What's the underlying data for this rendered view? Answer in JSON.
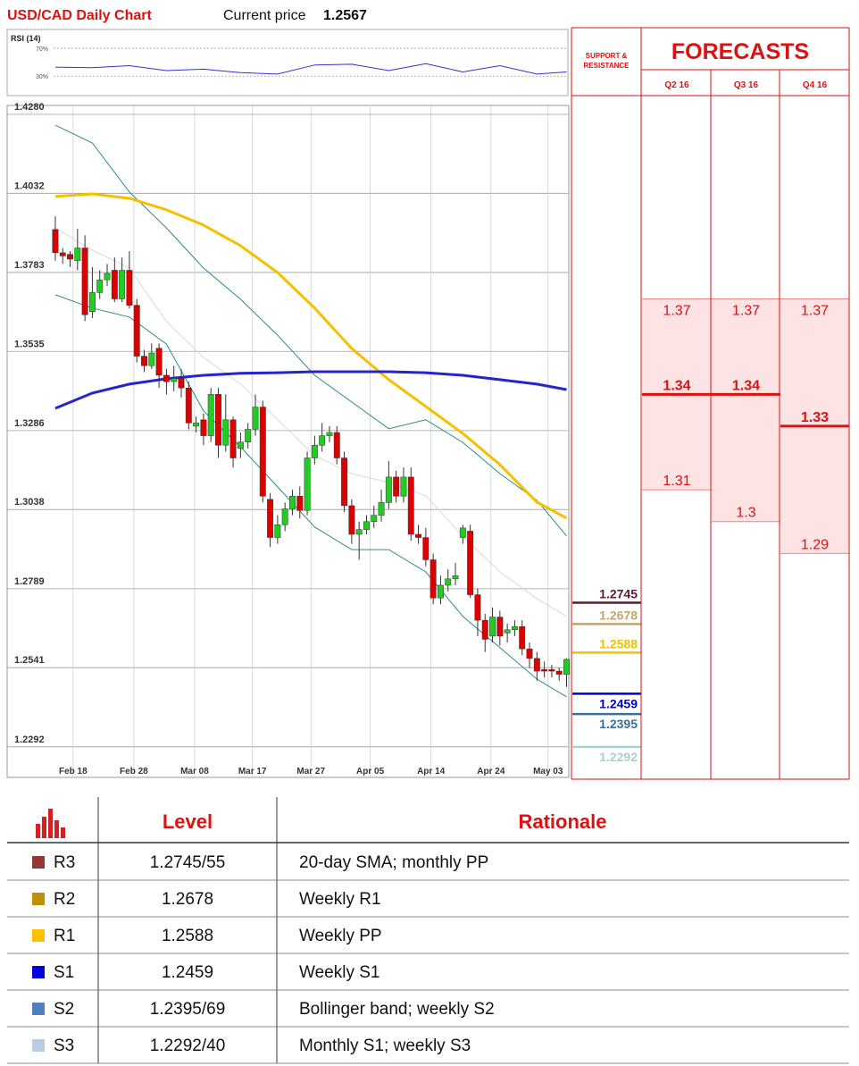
{
  "title": "USD/CAD Daily Chart",
  "current_price_label": "Current price",
  "current_price": 1.2567,
  "chart_data": [
    {
      "type": "candlestick",
      "xlim": [
        -6.5,
        69.3
      ],
      "xticks": [
        {
          "value": 2.4,
          "label": "Feb 18"
        },
        {
          "value": 10.6,
          "label": "Feb 28"
        },
        {
          "value": 18.8,
          "label": "Mar 08"
        },
        {
          "value": 26.6,
          "label": "Mar 17"
        },
        {
          "value": 34.5,
          "label": "Mar 27"
        },
        {
          "value": 42.5,
          "label": "Apr 05"
        },
        {
          "value": 50.7,
          "label": "Apr 14"
        },
        {
          "value": 58.8,
          "label": "Apr 24"
        },
        {
          "value": 66.5,
          "label": "May 03"
        }
      ],
      "ylim": [
        1.2196,
        1.428
      ],
      "yticks": [
        {
          "value": 1.428,
          "label": "1.4280"
        },
        1.4032,
        1.3783,
        1.3535,
        1.3286,
        {
          "value": 1.3038,
          "label": "1.3038"
        },
        1.2789,
        1.2541,
        1.2292
      ],
      "grid": true,
      "up_color": "#22cc22",
      "down_color": "#dd0000",
      "open": [
        1.3918,
        1.3845,
        1.384,
        1.382,
        1.386,
        1.366,
        1.372,
        1.376,
        1.379,
        1.37,
        1.379,
        1.368,
        1.352,
        1.349,
        1.3545,
        1.346,
        1.344,
        1.345,
        1.342,
        1.33,
        1.332,
        1.327,
        1.34,
        1.324,
        1.332,
        1.323,
        1.325,
        1.329,
        1.336,
        1.307,
        1.295,
        1.299,
        1.304,
        1.308,
        1.3035,
        1.32,
        1.324,
        1.327,
        1.328,
        1.32,
        1.305,
        1.296,
        1.2975,
        1.3,
        1.302,
        1.306,
        1.314,
        1.308,
        1.314,
        1.296,
        1.295,
        1.288,
        1.276,
        1.28,
        1.282,
        1.295,
        1.297,
        1.277,
        1.269,
        1.264,
        1.27,
        1.265,
        1.266,
        1.267,
        1.26,
        1.257,
        1.2535,
        1.2535,
        1.253,
        1.252
      ],
      "high": [
        1.396,
        1.386,
        1.385,
        1.392,
        1.39,
        1.38,
        1.379,
        1.381,
        1.383,
        1.383,
        1.385,
        1.37,
        1.354,
        1.356,
        1.356,
        1.348,
        1.349,
        1.348,
        1.344,
        1.333,
        1.334,
        1.342,
        1.342,
        1.34,
        1.333,
        1.328,
        1.331,
        1.34,
        1.338,
        1.309,
        1.302,
        1.306,
        1.31,
        1.311,
        1.322,
        1.327,
        1.331,
        1.33,
        1.33,
        1.322,
        1.307,
        1.3,
        1.302,
        1.305,
        1.31,
        1.319,
        1.316,
        1.317,
        1.317,
        1.299,
        1.298,
        1.29,
        1.283,
        1.285,
        1.287,
        1.299,
        1.299,
        1.279,
        1.271,
        1.273,
        1.272,
        1.268,
        1.269,
        1.269,
        1.262,
        1.259,
        1.256,
        1.255,
        1.254,
        1.257
      ],
      "low": [
        1.382,
        1.381,
        1.38,
        1.379,
        1.363,
        1.364,
        1.37,
        1.374,
        1.369,
        1.369,
        1.367,
        1.35,
        1.347,
        1.348,
        1.342,
        1.34,
        1.341,
        1.339,
        1.329,
        1.328,
        1.324,
        1.325,
        1.32,
        1.322,
        1.317,
        1.32,
        1.323,
        1.327,
        1.306,
        1.292,
        1.293,
        1.297,
        1.302,
        1.301,
        1.302,
        1.318,
        1.322,
        1.325,
        1.318,
        1.303,
        1.293,
        1.288,
        1.296,
        1.298,
        1.3,
        1.304,
        1.306,
        1.306,
        1.294,
        1.293,
        1.286,
        1.274,
        1.274,
        1.278,
        1.28,
        1.293,
        1.276,
        1.264,
        1.259,
        1.262,
        1.261,
        1.262,
        1.264,
        1.258,
        1.254,
        1.25,
        1.251,
        1.251,
        1.25,
        1.248
      ],
      "close": [
        1.3845,
        1.3835,
        1.3825,
        1.386,
        1.365,
        1.372,
        1.376,
        1.378,
        1.37,
        1.379,
        1.368,
        1.352,
        1.349,
        1.353,
        1.346,
        1.344,
        1.345,
        1.342,
        1.331,
        1.331,
        1.327,
        1.34,
        1.324,
        1.332,
        1.32,
        1.325,
        1.329,
        1.336,
        1.308,
        1.295,
        1.299,
        1.304,
        1.308,
        1.3035,
        1.32,
        1.324,
        1.327,
        1.328,
        1.32,
        1.305,
        1.296,
        1.2975,
        1.3,
        1.302,
        1.306,
        1.314,
        1.308,
        1.314,
        1.296,
        1.295,
        1.288,
        1.276,
        1.28,
        1.282,
        1.283,
        1.298,
        1.277,
        1.269,
        1.263,
        1.27,
        1.264,
        1.266,
        1.267,
        1.26,
        1.257,
        1.253,
        1.253,
        1.253,
        1.252,
        1.2567
      ],
      "overlay_x": [
        0,
        5,
        10,
        15,
        20,
        25,
        30,
        35,
        40,
        45,
        50,
        55,
        60,
        65,
        69
      ],
      "overlays": [
        {
          "color": "#d9d9d9",
          "width": 1,
          "values": [
            1.3923,
            1.3853,
            1.3797,
            1.3629,
            1.3516,
            1.3432,
            1.332,
            1.3207,
            1.3151,
            1.3123,
            1.3081,
            1.2955,
            1.2842,
            1.2758,
            1.2702
          ]
        },
        {
          "color": "#2e8b8b",
          "width": 1,
          "values": [
            1.4246,
            1.419,
            1.4036,
            1.3923,
            1.3797,
            1.3699,
            1.3586,
            1.346,
            1.3376,
            1.3292,
            1.332,
            1.3249,
            1.3151,
            1.3067,
            1.2955
          ]
        },
        {
          "color": "#2e8b8b",
          "width": 1,
          "values": [
            1.3713,
            1.3671,
            1.3643,
            1.3558,
            1.3348,
            1.3235,
            1.3109,
            1.2983,
            1.2912,
            1.2912,
            1.2842,
            1.2702,
            1.2604,
            1.2505,
            1.2449
          ]
        },
        {
          "color": "#f5c000",
          "width": 3,
          "values": [
            1.4022,
            1.403,
            1.4016,
            1.398,
            1.3932,
            1.3867,
            1.3783,
            1.3671,
            1.3544,
            1.3446,
            1.3362,
            1.3277,
            1.3179,
            1.3061,
            1.3011
          ]
        },
        {
          "color": "#2424d0",
          "width": 3,
          "values": [
            1.3356,
            1.3404,
            1.3432,
            1.3449,
            1.346,
            1.3466,
            1.3468,
            1.3471,
            1.3471,
            1.3471,
            1.3468,
            1.346,
            1.3446,
            1.3432,
            1.3415
          ]
        }
      ],
      "levels": [
        {
          "value": 1.2745,
          "color": "#5c1a33"
        },
        {
          "value": 1.2678,
          "color": "#c8a36a"
        },
        {
          "value": 1.2588,
          "color": "#f0c000"
        },
        {
          "value": 1.2459,
          "color": "#0000cc"
        },
        {
          "value": 1.2395,
          "color": "#3a6f9a"
        },
        {
          "value": 1.2292,
          "color": "#a8d0d0"
        }
      ]
    },
    {
      "type": "line",
      "title": "RSI (14)",
      "color": "#3333cc",
      "x": [
        0,
        5,
        10,
        15,
        20,
        25,
        30,
        35,
        40,
        45,
        50,
        55,
        60,
        65,
        69
      ],
      "values": [
        43,
        42,
        45,
        38,
        40,
        35,
        33,
        46,
        47,
        38,
        48,
        36,
        45,
        33,
        36
      ],
      "ylim": [
        2,
        97
      ],
      "yticks": [
        {
          "value": 70,
          "label": "70%"
        },
        {
          "value": 30,
          "label": "30%"
        }
      ]
    }
  ],
  "forecasts": {
    "support_resistance": [
      "SUPPORT &",
      "RESISTANCE"
    ],
    "title": "FORECASTS",
    "quarters": [
      {
        "label": "Q2 16",
        "values": [
          1.37,
          1.34,
          1.31
        ]
      },
      {
        "label": "Q3 16",
        "values": [
          1.37,
          1.34,
          1.3
        ]
      },
      {
        "label": "Q4 16",
        "values": [
          1.37,
          1.33,
          1.29
        ]
      }
    ]
  },
  "table": {
    "header": {
      "level": "Level",
      "rationale": "Rationale"
    },
    "rows": [
      {
        "code": "R3",
        "color": "#953735",
        "level": "1.2745/55",
        "rationale": "20-day SMA; monthly PP"
      },
      {
        "code": "R2",
        "color": "#c09000",
        "level": "1.2678",
        "rationale": "Weekly R1"
      },
      {
        "code": "R1",
        "color": "#ffc000",
        "level": "1.2588",
        "rationale": "Weekly PP"
      },
      {
        "code": "S1",
        "color": "#0000dd",
        "level": "1.2459",
        "rationale": "Weekly S1"
      },
      {
        "code": "S2",
        "color": "#4f81bd",
        "level": "1.2395/69",
        "rationale": "Bollinger band; weekly S2"
      },
      {
        "code": "S3",
        "color": "#b8cce4",
        "level": "1.2292/40",
        "rationale": "Monthly S1; weekly S3"
      }
    ]
  }
}
